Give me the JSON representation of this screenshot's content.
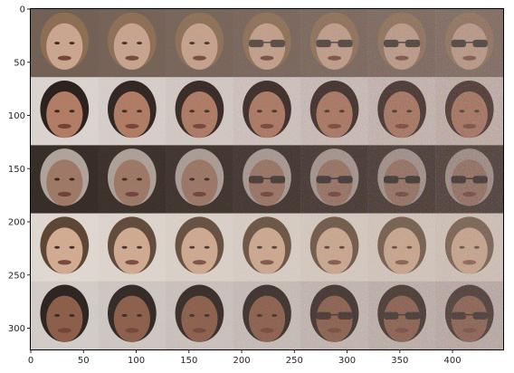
{
  "figure": {
    "x_ticks": [
      0,
      50,
      100,
      150,
      200,
      250,
      300,
      350,
      400
    ],
    "y_ticks": [
      0,
      50,
      100,
      150,
      200,
      250,
      300
    ],
    "x_range": [
      0,
      448
    ],
    "y_range": [
      0,
      320
    ],
    "grid": {
      "rows": 5,
      "cols": 7,
      "cell_size": 64
    },
    "rows": [
      {
        "subject": "light-haired woman",
        "tint": "#9a8272",
        "bg": "#6b5a4e",
        "hair": "#8a6a4c",
        "skin": "#d2ab92",
        "progression": [
          "face",
          "face",
          "face",
          "face + sunglasses",
          "face + sunglasses",
          "face + sunglasses",
          "face + sunglasses"
        ]
      },
      {
        "subject": "dark-haired smiling woman",
        "tint": "#8f6b58",
        "bg": "#e6e4e0",
        "hair": "#1a1310",
        "skin": "#b77e63",
        "progression": [
          "face",
          "face",
          "face",
          "face",
          "face",
          "face",
          "face"
        ]
      },
      {
        "subject": "grey-haired man",
        "tint": "#7b6556",
        "bg": "#2a221c",
        "hair": "#b7aca3",
        "skin": "#a37a65",
        "progression": [
          "face",
          "face",
          "face",
          "face + sunglasses",
          "face + sunglasses",
          "face + sunglasses",
          "face + sunglasses"
        ]
      },
      {
        "subject": "young child",
        "tint": "#b49a86",
        "bg": "#e7e2dc",
        "hair": "#4e3726",
        "skin": "#d7ae92",
        "progression": [
          "face",
          "face",
          "face",
          "face",
          "face",
          "face",
          "face"
        ]
      },
      {
        "subject": "dark-haired man",
        "tint": "#8d715f",
        "bg": "#dddad6",
        "hair": "#1d1713",
        "skin": "#8b5a43",
        "progression": [
          "face",
          "face",
          "face",
          "face",
          "face + sunglasses",
          "face + sunglasses",
          "face + sunglasses"
        ]
      }
    ],
    "colors": {
      "axis": "#262626",
      "spine": "#000000",
      "sunglasses": "#141414"
    }
  }
}
